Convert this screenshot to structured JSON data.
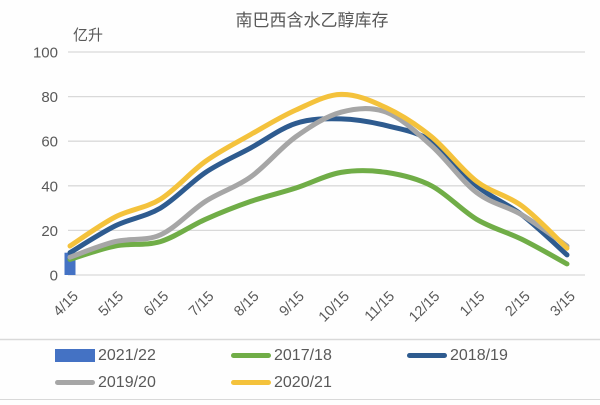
{
  "chart_data": {
    "type": "line",
    "title": "南巴西含水乙醇库存",
    "unit_label": "亿升",
    "categories": [
      "4/15",
      "5/15",
      "6/15",
      "7/15",
      "8/15",
      "9/15",
      "10/15",
      "11/15",
      "12/15",
      "1/15",
      "2/15",
      "3/15"
    ],
    "yticks": [
      100,
      80,
      60,
      40,
      20,
      0
    ],
    "ylim": [
      0,
      100
    ],
    "grid": "horizontal",
    "legend_position": "bottom",
    "colors": {
      "grid": "#d9d9d9",
      "text": "#595959"
    },
    "series": [
      {
        "name": "2021/22",
        "type": "bar",
        "color": "#4472c4",
        "values": [
          10,
          null,
          null,
          null,
          null,
          null,
          null,
          null,
          null,
          null,
          null,
          null
        ]
      },
      {
        "name": "2017/18",
        "type": "line",
        "color": "#70ad47",
        "values": [
          7,
          13,
          15,
          25,
          33,
          39,
          46,
          46,
          40,
          25,
          16,
          5
        ]
      },
      {
        "name": "2018/19",
        "type": "line",
        "color": "#2e5b8f",
        "values": [
          10,
          22,
          30,
          46,
          57,
          68,
          70,
          67,
          60,
          40,
          27,
          9
        ]
      },
      {
        "name": "2019/20",
        "type": "line",
        "color": "#a6a6a6",
        "values": [
          8,
          15,
          18,
          33,
          44,
          62,
          73,
          73,
          58,
          37,
          27,
          13
        ]
      },
      {
        "name": "2020/21",
        "type": "line",
        "color": "#f4c23c",
        "values": [
          13,
          26,
          34,
          51,
          63,
          74,
          81,
          75,
          62,
          42,
          31,
          12
        ]
      }
    ]
  }
}
